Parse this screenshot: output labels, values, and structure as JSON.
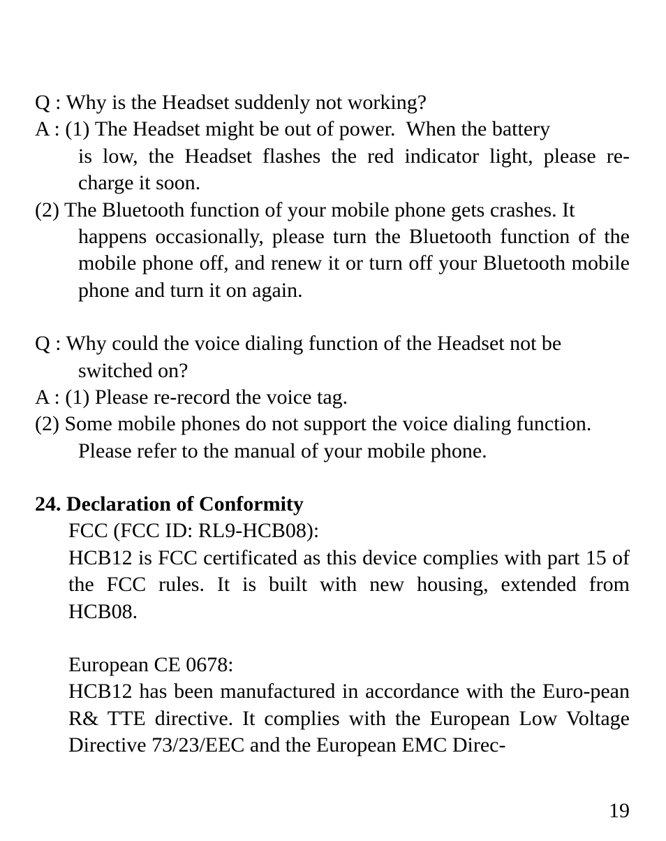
{
  "qa1": {
    "q": "Q : Why is the Headset suddenly not working?",
    "a_lead": "A : (1) The Headset might be out of power.  When the battery is low, the Headset flashes the red indicator light, please re-charge it soon.",
    "a2_lead": "(2) The Bluetooth function of your mobile phone gets crashes.  It",
    "a2_cont": "happens occasionally, please turn the Bluetooth function of the mobile phone off, and renew it or turn off your Bluetooth mobile phone and turn it on again."
  },
  "qa2": {
    "q": "Q : Why could the voice dialing function of the Headset not be",
    "q_cont": "switched on?",
    "a1": "A : (1) Please re-record the voice tag.",
    "a2_lead": "(2) Some mobile phones do not support the voice dialing function.",
    "a2_cont": "Please refer to the manual of your mobile phone."
  },
  "section": {
    "heading": "24. Declaration of Conformity",
    "fcc_label": "FCC (FCC ID: RL9-HCB08):",
    "fcc_body": "HCB12 is FCC certificated as this device complies with part 15 of the FCC rules. It is built with new housing, extended from HCB08.",
    "ce_label": "European CE 0678:",
    "ce_body": "HCB12 has been manufactured in accordance with the Euro-pean R& TTE directive.  It complies with the European Low Voltage Directive 73/23/EEC and the European EMC Direc-"
  },
  "page_number": "19"
}
